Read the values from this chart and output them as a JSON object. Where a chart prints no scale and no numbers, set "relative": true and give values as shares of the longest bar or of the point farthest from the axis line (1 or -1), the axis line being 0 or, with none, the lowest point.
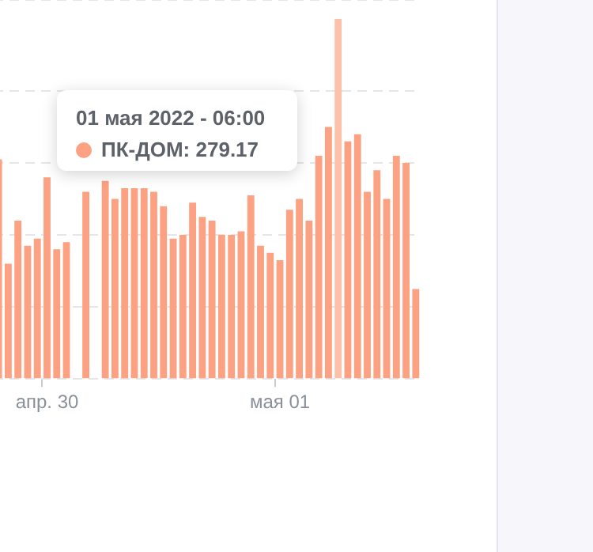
{
  "chart_data": {
    "type": "bar",
    "relative": true,
    "grid": "y",
    "categories": [
      null,
      null,
      null,
      null,
      null,
      "апр. 30",
      null,
      null,
      null,
      null,
      null,
      null,
      null,
      null,
      null,
      null,
      null,
      null,
      null,
      null,
      null,
      null,
      null,
      null,
      null,
      null,
      null,
      null,
      null,
      "мая 01",
      null,
      null,
      null,
      null,
      null,
      null,
      null,
      null,
      null,
      null,
      null,
      null,
      null,
      null
    ],
    "series": [
      {
        "color": "#fca182",
        "colors": [
          "#fca182",
          "#fca182",
          "#fca182",
          "#fca182",
          "#fca182",
          "#fca182",
          "#fca182",
          "#fca182",
          "#fca182",
          "#fca182",
          "#fca182",
          "#fca182",
          "#fca182",
          "#fca182",
          "#fca182",
          "#fca182",
          "#fca182",
          "#fca182",
          "#fca182",
          "#fca182",
          "#fca182",
          "#fca182",
          "#fca182",
          "#fca182",
          "#fca182",
          "#fca182",
          "#fca182",
          "#fca182",
          "#fca182",
          "#fca182",
          "#fca182",
          "#fca182",
          "#fca182",
          "#fca182",
          "#fca182",
          "#fdc0a8",
          "#fca182",
          "#fca182",
          "#fca182",
          "#fca182",
          "#fca182",
          "#fca182",
          "#fca182",
          "#fca182"
        ],
        "values": [
          0.61,
          0.32,
          0.44,
          0.37,
          0.39,
          0.56,
          0.36,
          0.38,
          null,
          0.52,
          null,
          0.55,
          0.5,
          0.53,
          0.53,
          0.53,
          0.52,
          0.48,
          0.39,
          0.4,
          0.49,
          0.45,
          0.44,
          0.4,
          0.4,
          0.41,
          0.51,
          0.37,
          0.35,
          0.33,
          0.47,
          0.5,
          0.44,
          0.62,
          0.7,
          1,
          0.66,
          0.68,
          0.52,
          0.58,
          0.5,
          0.62,
          0.6,
          0.25
        ]
      }
    ],
    "annotations": [
      "01 мая 2022 - 06:00",
      "ПК-ДОМ: 279.17"
    ]
  }
}
